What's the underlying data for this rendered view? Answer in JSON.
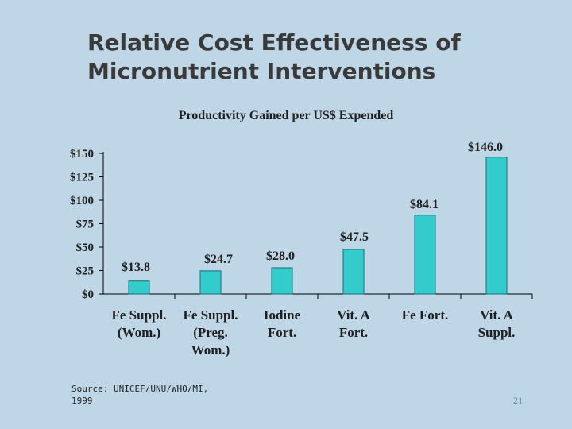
{
  "slide": {
    "title_line1": "Relative Cost Effectiveness of",
    "title_line2": "Micronutrient Interventions",
    "source_line1": "Source: UNICEF/UNU/WHO/MI,",
    "source_line2": "1999",
    "page_number": "21"
  },
  "colors": {
    "bar": "#33cccc",
    "axis": "#000000",
    "background": "#bed6e6"
  },
  "chart_data": {
    "type": "bar",
    "title": "Productivity Gained per US$ Expended",
    "xlabel": "",
    "ylabel": "",
    "ylim": [
      0,
      150
    ],
    "yticks": [
      0,
      25,
      50,
      75,
      100,
      125,
      150
    ],
    "ytick_labels": [
      "$0",
      "$25",
      "$50",
      "$75",
      "$100",
      "$125",
      "$150"
    ],
    "categories": [
      [
        "Fe Suppl.",
        "(Wom.)"
      ],
      [
        "Fe Suppl.",
        "(Preg.",
        "Wom.)"
      ],
      [
        "Iodine",
        "Fort."
      ],
      [
        "Vit. A",
        "Fort."
      ],
      [
        "Fe Fort."
      ],
      [
        "Vit. A",
        "Suppl."
      ]
    ],
    "values": [
      13.8,
      24.7,
      28.0,
      47.5,
      84.1,
      146.0
    ],
    "data_labels": [
      "$13.8",
      "$24.7",
      "$28.0",
      "$47.5",
      "$84.1",
      "$146.0"
    ],
    "grid": false,
    "legend": "none"
  }
}
